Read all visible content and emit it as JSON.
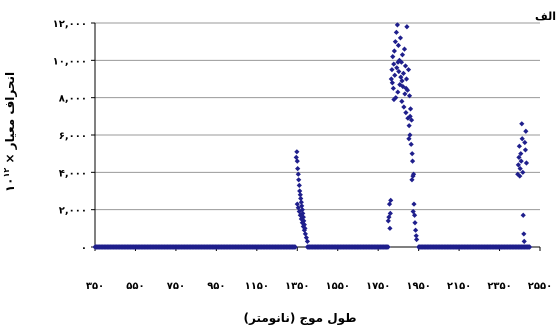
{
  "chart_data": {
    "type": "scatter",
    "panel_label": "الف",
    "xlabel": "طول موج (نانومتر)",
    "ylabel": "انحراف معيار × ۱۰^۱۲",
    "ylabel_main": "انحراف معيار × ۱۰",
    "ylabel_sup": "۱۲",
    "xlim": [
      350,
      2550
    ],
    "ylim": [
      0,
      12000
    ],
    "grid": "horizontal",
    "legend": "none",
    "marker_color": "#1f1f8c",
    "xticks": [
      350,
      550,
      750,
      950,
      1150,
      1350,
      1550,
      1750,
      1950,
      2150,
      2350,
      2550
    ],
    "xtick_labels": [
      "۳۵۰",
      "۵۵۰",
      "۷۵۰",
      "۹۵۰",
      "۱۱۵۰",
      "۱۳۵۰",
      "۱۵۵۰",
      "۱۷۵۰",
      "۱۹۵۰",
      "۲۱۵۰",
      "۲۳۵۰",
      "۲۵۵۰"
    ],
    "yticks": [
      0,
      2000,
      4000,
      6000,
      8000,
      10000,
      12000
    ],
    "ytick_labels": [
      "۰",
      "۲,۰۰۰",
      "۴,۰۰۰",
      "۶,۰۰۰",
      "۸,۰۰۰",
      "۱۰,۰۰۰",
      "۱۲,۰۰۰"
    ],
    "series": [
      {
        "baseline_ranges": [
          [
            350,
            1340
          ],
          [
            1400,
            1800
          ],
          [
            1950,
            2500
          ]
        ],
        "points": [
          [
            1345,
            4800
          ],
          [
            1348,
            5100
          ],
          [
            1350,
            4600
          ],
          [
            1352,
            4200
          ],
          [
            1355,
            3900
          ],
          [
            1357,
            3600
          ],
          [
            1360,
            3300
          ],
          [
            1362,
            3000
          ],
          [
            1365,
            2800
          ],
          [
            1367,
            2600
          ],
          [
            1370,
            2400
          ],
          [
            1372,
            2200
          ],
          [
            1375,
            2000
          ],
          [
            1377,
            1800
          ],
          [
            1380,
            1600
          ],
          [
            1382,
            1400
          ],
          [
            1385,
            1200
          ],
          [
            1388,
            1000
          ],
          [
            1350,
            2300
          ],
          [
            1355,
            2100
          ],
          [
            1360,
            1900
          ],
          [
            1365,
            1700
          ],
          [
            1370,
            1500
          ],
          [
            1375,
            1300
          ],
          [
            1380,
            1100
          ],
          [
            1385,
            900
          ],
          [
            1390,
            700
          ],
          [
            1395,
            500
          ],
          [
            1400,
            300
          ],
          [
            1800,
            1400
          ],
          [
            1803,
            1600
          ],
          [
            1806,
            2300
          ],
          [
            1808,
            1000
          ],
          [
            1810,
            1800
          ],
          [
            1815,
            9000
          ],
          [
            1818,
            9500
          ],
          [
            1820,
            8800
          ],
          [
            1822,
            10200
          ],
          [
            1825,
            8500
          ],
          [
            1827,
            9800
          ],
          [
            1830,
            10500
          ],
          [
            1832,
            9200
          ],
          [
            1835,
            11000
          ],
          [
            1837,
            8000
          ],
          [
            1840,
            11500
          ],
          [
            1842,
            9600
          ],
          [
            1845,
            11900
          ],
          [
            1847,
            8300
          ],
          [
            1850,
            10800
          ],
          [
            1852,
            9400
          ],
          [
            1855,
            10000
          ],
          [
            1857,
            8700
          ],
          [
            1860,
            11200
          ],
          [
            1862,
            9100
          ],
          [
            1865,
            9900
          ],
          [
            1867,
            7800
          ],
          [
            1870,
            10300
          ],
          [
            1872,
            8600
          ],
          [
            1875,
            9300
          ],
          [
            1877,
            7500
          ],
          [
            1880,
            10600
          ],
          [
            1882,
            8200
          ],
          [
            1885,
            9700
          ],
          [
            1887,
            7200
          ],
          [
            1890,
            9000
          ],
          [
            1892,
            11800
          ],
          [
            1895,
            8400
          ],
          [
            1897,
            6900
          ],
          [
            1900,
            9500
          ],
          [
            1903,
            6500
          ],
          [
            1905,
            8100
          ],
          [
            1907,
            6000
          ],
          [
            1910,
            7400
          ],
          [
            1913,
            5500
          ],
          [
            1915,
            6800
          ],
          [
            1918,
            5000
          ],
          [
            1920,
            4600
          ],
          [
            1922,
            3800
          ],
          [
            1925,
            3900
          ],
          [
            1927,
            2300
          ],
          [
            1930,
            1700
          ],
          [
            1932,
            1300
          ],
          [
            1935,
            900
          ],
          [
            1938,
            600
          ],
          [
            1940,
            400
          ],
          [
            1812,
            2500
          ],
          [
            1828,
            7900
          ],
          [
            1848,
            9900
          ],
          [
            1868,
            8900
          ],
          [
            1888,
            8500
          ],
          [
            1908,
            7000
          ],
          [
            1902,
            5800
          ],
          [
            1917,
            3600
          ],
          [
            1923,
            1900
          ],
          [
            2440,
            3900
          ],
          [
            2443,
            4400
          ],
          [
            2446,
            4800
          ],
          [
            2448,
            5400
          ],
          [
            2450,
            3800
          ],
          [
            2452,
            4200
          ],
          [
            2455,
            5000
          ],
          [
            2457,
            4600
          ],
          [
            2460,
            6600
          ],
          [
            2462,
            5800
          ],
          [
            2465,
            4000
          ],
          [
            2467,
            1700
          ],
          [
            2470,
            700
          ],
          [
            2472,
            300
          ],
          [
            2475,
            5600
          ],
          [
            2478,
            5200
          ],
          [
            2480,
            6200
          ],
          [
            2483,
            4500
          ]
        ]
      }
    ]
  }
}
